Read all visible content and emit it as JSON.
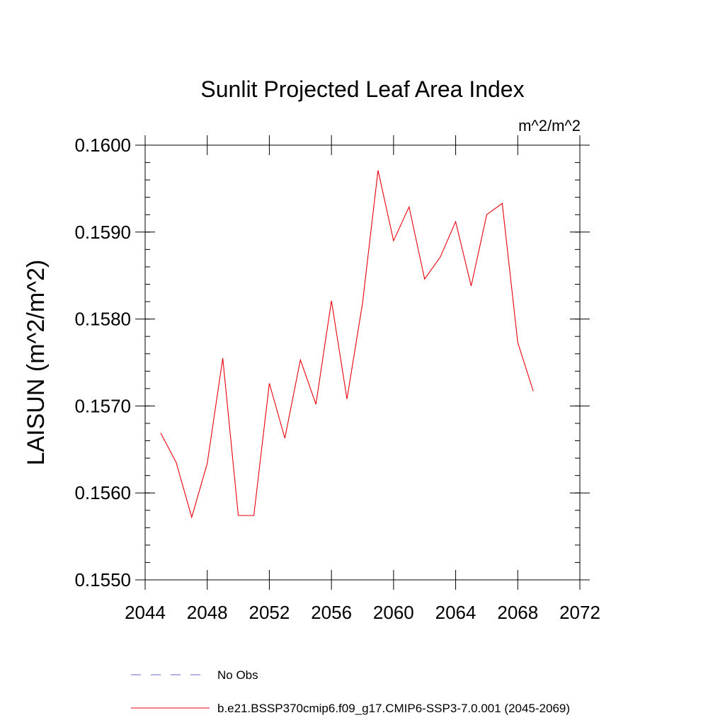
{
  "chart_data": {
    "type": "line",
    "title": "Sunlit Projected Leaf Area Index",
    "units": "m^2/m^2",
    "xlabel": "",
    "ylabel": "LAISUN  (m^2/m^2)",
    "xlim": [
      2044,
      2072
    ],
    "ylim": [
      0.155,
      0.16
    ],
    "x_ticks": [
      2044,
      2048,
      2052,
      2056,
      2060,
      2064,
      2068,
      2072
    ],
    "y_ticks": [
      "0.1550",
      "0.1560",
      "0.1570",
      "0.1580",
      "0.1590",
      "0.1600"
    ],
    "x": [
      2045,
      2046,
      2047,
      2048,
      2049,
      2050,
      2051,
      2052,
      2053,
      2054,
      2055,
      2056,
      2057,
      2058,
      2059,
      2060,
      2061,
      2062,
      2063,
      2064,
      2065,
      2066,
      2067,
      2068,
      2069
    ],
    "series": [
      {
        "name": "b.e21.BSSP370cmip6.f09_g17.CMIP6-SSP3-7.0.001 (2045-2069)",
        "color": "#e8000b",
        "values": [
          0.15669,
          0.15635,
          0.15572,
          0.15634,
          0.15755,
          0.15574,
          0.15574,
          0.15726,
          0.15663,
          0.15753,
          0.15702,
          0.15821,
          0.15708,
          0.15818,
          0.15971,
          0.1589,
          0.15929,
          0.15846,
          0.15871,
          0.15912,
          0.15838,
          0.1592,
          0.15933,
          0.15773,
          0.15717
        ]
      }
    ],
    "legend": {
      "placement": "bottom",
      "entries": [
        {
          "label": "No Obs",
          "color": "#6666cc",
          "style": "dashed"
        },
        {
          "label": "b.e21.BSSP370cmip6.f09_g17.CMIP6-SSP3-7.0.001 (2045-2069)",
          "color": "#e8000b",
          "style": "solid"
        }
      ]
    }
  }
}
